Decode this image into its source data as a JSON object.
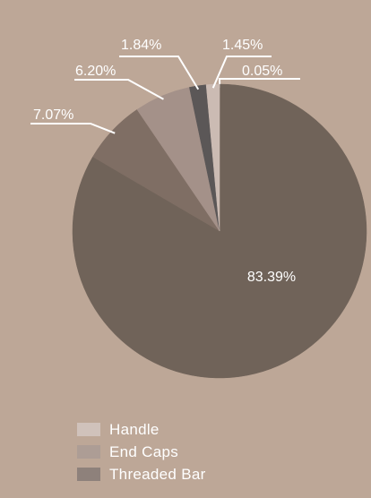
{
  "chart_data": {
    "type": "pie",
    "slices": [
      {
        "label": "",
        "value": 0.05,
        "value_label": "0.05%",
        "color": "#ad9c92"
      },
      {
        "label": "",
        "value": 83.39,
        "value_label": "83.39%",
        "color": "#706359"
      },
      {
        "label": "",
        "value": 7.07,
        "value_label": "7.07%",
        "color": "#7f6e64"
      },
      {
        "label": "",
        "value": 6.2,
        "value_label": "6.20%",
        "color": "#a49189"
      },
      {
        "label": "",
        "value": 1.84,
        "value_label": "1.84%",
        "color": "#5b5757"
      },
      {
        "label": "",
        "value": 1.45,
        "value_label": "1.45%",
        "color": "#cbbbb3"
      }
    ],
    "legend": {
      "placement": "bottom-left",
      "entries": [
        {
          "label": "Handle",
          "color": "#d0c2bb"
        },
        {
          "label": "End Caps",
          "color": "#ad9d95"
        },
        {
          "label": "Threaded Bar",
          "color": "#8e817b"
        }
      ]
    }
  }
}
